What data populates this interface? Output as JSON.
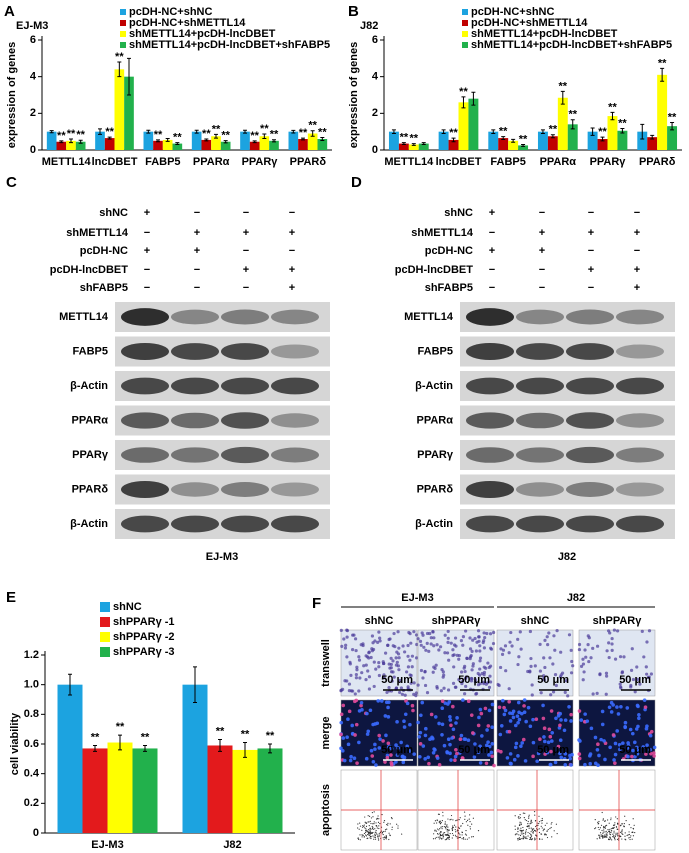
{
  "chart_data": [
    {
      "type": "bar",
      "panel": "A",
      "subtitle": "EJ-M3",
      "ylabel": "expression of genes",
      "categories": [
        "METTL14",
        "lncDBET",
        "FABP5",
        "PPARα",
        "PPARγ",
        "PPARδ"
      ],
      "ylim": [
        0,
        6
      ],
      "yticks": [
        0,
        2,
        4,
        6
      ],
      "series": [
        {
          "name": "pcDH-NC+shNC",
          "color": "#1ca3e0",
          "values": [
            1,
            1,
            1,
            1,
            1,
            1
          ],
          "errors": [
            0.06,
            0.15,
            0.08,
            0.08,
            0.08,
            0.07
          ]
        },
        {
          "name": "pcDH-NC+shMETTL14",
          "color": "#c00000",
          "values": [
            0.45,
            0.65,
            0.5,
            0.55,
            0.45,
            0.6
          ],
          "errors": [
            0.05,
            0.05,
            0.05,
            0.05,
            0.05,
            0.05
          ],
          "significance": [
            "**",
            "**",
            "**",
            "**",
            "**",
            "**"
          ]
        },
        {
          "name": "shMETTL14+pcDH-lncDBET",
          "color": "#ffff00",
          "values": [
            0.5,
            4.4,
            0.55,
            0.75,
            0.75,
            0.9
          ],
          "errors": [
            0.1,
            0.4,
            0.08,
            0.1,
            0.12,
            0.15
          ],
          "significance": [
            "**",
            "**",
            null,
            "**",
            "**",
            "**"
          ]
        },
        {
          "name": "shMETTL14+pcDH-lncDBET+shFABP5",
          "color": "#22b14c",
          "values": [
            0.45,
            4.0,
            0.35,
            0.45,
            0.5,
            0.6
          ],
          "errors": [
            0.08,
            1.0,
            0.05,
            0.06,
            0.06,
            0.08
          ],
          "significance": [
            "**",
            null,
            "**",
            "**",
            "**",
            "**"
          ]
        }
      ]
    },
    {
      "type": "bar",
      "panel": "B",
      "subtitle": "J82",
      "ylabel": "expression of genes",
      "categories": [
        "METTL14",
        "lncDBET",
        "FABP5",
        "PPARα",
        "PPARγ",
        "PPARδ"
      ],
      "ylim": [
        0,
        6
      ],
      "yticks": [
        0,
        2,
        4,
        6
      ],
      "series": [
        {
          "name": "pcDH-NC+shNC",
          "color": "#1ca3e0",
          "values": [
            1,
            1,
            1,
            1,
            1,
            1
          ],
          "errors": [
            0.1,
            0.1,
            0.1,
            0.1,
            0.2,
            0.4
          ]
        },
        {
          "name": "pcDH-NC+shMETTL14",
          "color": "#c00000",
          "values": [
            0.35,
            0.55,
            0.65,
            0.75,
            0.6,
            0.7
          ],
          "errors": [
            0.05,
            0.1,
            0.08,
            0.08,
            0.1,
            0.1
          ],
          "significance": [
            "**",
            "**",
            "**",
            "**",
            "**",
            null
          ]
        },
        {
          "name": "shMETTL14+pcDH-lncDBET",
          "color": "#ffff00",
          "values": [
            0.3,
            2.6,
            0.5,
            2.85,
            1.85,
            4.1
          ],
          "errors": [
            0.05,
            0.3,
            0.08,
            0.35,
            0.2,
            0.35
          ],
          "significance": [
            "**",
            "**",
            null,
            "**",
            "**",
            "**"
          ]
        },
        {
          "name": "shMETTL14+pcDH-lncDBET+shFABP5",
          "color": "#22b14c",
          "values": [
            0.35,
            2.8,
            0.25,
            1.4,
            1.05,
            1.3
          ],
          "errors": [
            0.05,
            0.35,
            0.05,
            0.25,
            0.12,
            0.2
          ],
          "significance": [
            null,
            null,
            "**",
            "**",
            "**",
            "**"
          ]
        }
      ]
    },
    {
      "type": "bar",
      "panel": "E",
      "ylabel": "cell viability",
      "categories": [
        "EJ-M3",
        "J82"
      ],
      "ylim": [
        0,
        1.2
      ],
      "yticks": [
        0,
        0.2,
        0.4,
        0.6,
        0.8,
        {
          "value": 1,
          "label": "1.0"
        },
        1.2
      ],
      "series": [
        {
          "name": "shNC",
          "color": "#1ca3e0",
          "values": [
            1.0,
            1.0
          ],
          "errors": [
            0.07,
            0.12
          ]
        },
        {
          "name": "shPPARγ -1",
          "color": "#e31a1c",
          "values": [
            0.57,
            0.59
          ],
          "errors": [
            0.02,
            0.04
          ],
          "significance": [
            "**",
            "**"
          ]
        },
        {
          "name": "shPPARγ -2",
          "color": "#ffff00",
          "values": [
            0.61,
            0.56
          ],
          "errors": [
            0.05,
            0.05
          ],
          "significance": [
            "**",
            "**"
          ]
        },
        {
          "name": "shPPARγ -3",
          "color": "#22b14c",
          "values": [
            0.57,
            0.57
          ],
          "errors": [
            0.02,
            0.03
          ],
          "significance": [
            "**",
            "**"
          ]
        }
      ]
    }
  ],
  "blots": [
    {
      "panel": "C",
      "cell_line": "EJ-M3",
      "conditions": [
        {
          "name": "shNC",
          "marks": [
            "+",
            "−",
            "−",
            "−"
          ]
        },
        {
          "name": "shMETTL14",
          "marks": [
            "−",
            "+",
            "+",
            "+"
          ]
        },
        {
          "name": "pcDH-NC",
          "marks": [
            "+",
            "+",
            "−",
            "−"
          ]
        },
        {
          "name": "pcDH-lncDBET",
          "marks": [
            "−",
            "−",
            "+",
            "+"
          ]
        },
        {
          "name": "shFABP5",
          "marks": [
            "−",
            "−",
            "−",
            "+"
          ]
        }
      ],
      "bands": [
        "METTL14",
        "FABP5",
        "β-Actin",
        "PPARα",
        "PPARγ",
        "PPARδ",
        "β-Actin"
      ]
    },
    {
      "panel": "D",
      "cell_line": "J82",
      "conditions": [
        {
          "name": "shNC",
          "marks": [
            "+",
            "−",
            "−",
            "−"
          ]
        },
        {
          "name": "shMETTL14",
          "marks": [
            "−",
            "+",
            "+",
            "+"
          ]
        },
        {
          "name": "pcDH-NC",
          "marks": [
            "+",
            "+",
            "−",
            "−"
          ]
        },
        {
          "name": "pcDH-lncDBET",
          "marks": [
            "−",
            "−",
            "+",
            "+"
          ]
        },
        {
          "name": "shFABP5",
          "marks": [
            "−",
            "−",
            "−",
            "+"
          ]
        }
      ],
      "bands": [
        "METTL14",
        "FABP5",
        "β-Actin",
        "PPARα",
        "PPARγ",
        "PPARδ",
        "β-Actin"
      ]
    }
  ],
  "images": {
    "panel": "F",
    "groups": [
      "EJ-M3",
      "J82"
    ],
    "columns": [
      "shNC",
      "shPPARγ",
      "shNC",
      "shPPARγ"
    ],
    "rows": [
      "transwell",
      "merge",
      "apoptosis"
    ],
    "scale_bar": "50 μm"
  }
}
